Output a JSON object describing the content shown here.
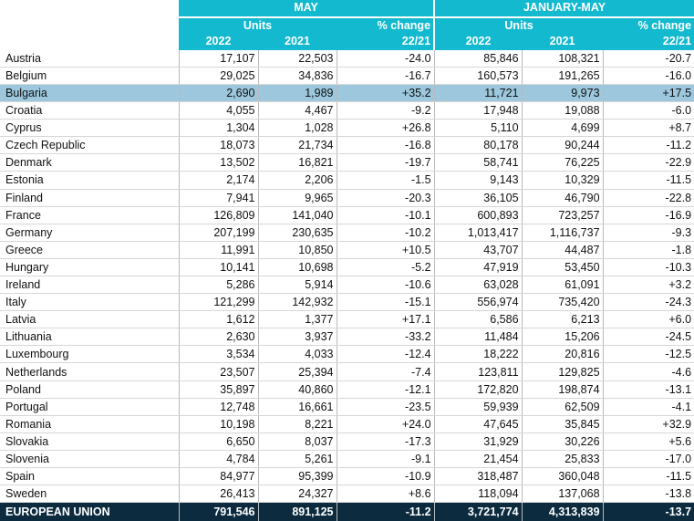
{
  "header": {
    "may_label": "MAY",
    "jan_may_label": "JANUARY-MAY",
    "units_label": "Units",
    "pct_change_label": "% change",
    "year_2022": "2022",
    "year_2021": "2021",
    "period_label": "22/21"
  },
  "rows": [
    {
      "country": "Austria",
      "may_2022": "17,107",
      "may_2021": "22,503",
      "may_pct": "-24.0",
      "ytd_2022": "85,846",
      "ytd_2021": "108,321",
      "ytd_pct": "-20.7"
    },
    {
      "country": "Belgium",
      "may_2022": "29,025",
      "may_2021": "34,836",
      "may_pct": "-16.7",
      "ytd_2022": "160,573",
      "ytd_2021": "191,265",
      "ytd_pct": "-16.0"
    },
    {
      "country": "Bulgaria",
      "may_2022": "2,690",
      "may_2021": "1,989",
      "may_pct": "+35.2",
      "ytd_2022": "11,721",
      "ytd_2021": "9,973",
      "ytd_pct": "+17.5"
    },
    {
      "country": "Croatia",
      "may_2022": "4,055",
      "may_2021": "4,467",
      "may_pct": "-9.2",
      "ytd_2022": "17,948",
      "ytd_2021": "19,088",
      "ytd_pct": "-6.0"
    },
    {
      "country": "Cyprus",
      "may_2022": "1,304",
      "may_2021": "1,028",
      "may_pct": "+26.8",
      "ytd_2022": "5,110",
      "ytd_2021": "4,699",
      "ytd_pct": "+8.7"
    },
    {
      "country": "Czech Republic",
      "may_2022": "18,073",
      "may_2021": "21,734",
      "may_pct": "-16.8",
      "ytd_2022": "80,178",
      "ytd_2021": "90,244",
      "ytd_pct": "-11.2"
    },
    {
      "country": "Denmark",
      "may_2022": "13,502",
      "may_2021": "16,821",
      "may_pct": "-19.7",
      "ytd_2022": "58,741",
      "ytd_2021": "76,225",
      "ytd_pct": "-22.9"
    },
    {
      "country": "Estonia",
      "may_2022": "2,174",
      "may_2021": "2,206",
      "may_pct": "-1.5",
      "ytd_2022": "9,143",
      "ytd_2021": "10,329",
      "ytd_pct": "-11.5"
    },
    {
      "country": "Finland",
      "may_2022": "7,941",
      "may_2021": "9,965",
      "may_pct": "-20.3",
      "ytd_2022": "36,105",
      "ytd_2021": "46,790",
      "ytd_pct": "-22.8"
    },
    {
      "country": "France",
      "may_2022": "126,809",
      "may_2021": "141,040",
      "may_pct": "-10.1",
      "ytd_2022": "600,893",
      "ytd_2021": "723,257",
      "ytd_pct": "-16.9"
    },
    {
      "country": "Germany",
      "may_2022": "207,199",
      "may_2021": "230,635",
      "may_pct": "-10.2",
      "ytd_2022": "1,013,417",
      "ytd_2021": "1,116,737",
      "ytd_pct": "-9.3"
    },
    {
      "country": "Greece",
      "may_2022": "11,991",
      "may_2021": "10,850",
      "may_pct": "+10.5",
      "ytd_2022": "43,707",
      "ytd_2021": "44,487",
      "ytd_pct": "-1.8"
    },
    {
      "country": "Hungary",
      "may_2022": "10,141",
      "may_2021": "10,698",
      "may_pct": "-5.2",
      "ytd_2022": "47,919",
      "ytd_2021": "53,450",
      "ytd_pct": "-10.3"
    },
    {
      "country": "Ireland",
      "may_2022": "5,286",
      "may_2021": "5,914",
      "may_pct": "-10.6",
      "ytd_2022": "63,028",
      "ytd_2021": "61,091",
      "ytd_pct": "+3.2"
    },
    {
      "country": "Italy",
      "may_2022": "121,299",
      "may_2021": "142,932",
      "may_pct": "-15.1",
      "ytd_2022": "556,974",
      "ytd_2021": "735,420",
      "ytd_pct": "-24.3"
    },
    {
      "country": "Latvia",
      "may_2022": "1,612",
      "may_2021": "1,377",
      "may_pct": "+17.1",
      "ytd_2022": "6,586",
      "ytd_2021": "6,213",
      "ytd_pct": "+6.0"
    },
    {
      "country": "Lithuania",
      "may_2022": "2,630",
      "may_2021": "3,937",
      "may_pct": "-33.2",
      "ytd_2022": "11,484",
      "ytd_2021": "15,206",
      "ytd_pct": "-24.5"
    },
    {
      "country": "Luxembourg",
      "may_2022": "3,534",
      "may_2021": "4,033",
      "may_pct": "-12.4",
      "ytd_2022": "18,222",
      "ytd_2021": "20,816",
      "ytd_pct": "-12.5"
    },
    {
      "country": "Netherlands",
      "may_2022": "23,507",
      "may_2021": "25,394",
      "may_pct": "-7.4",
      "ytd_2022": "123,811",
      "ytd_2021": "129,825",
      "ytd_pct": "-4.6"
    },
    {
      "country": "Poland",
      "may_2022": "35,897",
      "may_2021": "40,860",
      "may_pct": "-12.1",
      "ytd_2022": "172,820",
      "ytd_2021": "198,874",
      "ytd_pct": "-13.1"
    },
    {
      "country": "Portugal",
      "may_2022": "12,748",
      "may_2021": "16,661",
      "may_pct": "-23.5",
      "ytd_2022": "59,939",
      "ytd_2021": "62,509",
      "ytd_pct": "-4.1"
    },
    {
      "country": "Romania",
      "may_2022": "10,198",
      "may_2021": "8,221",
      "may_pct": "+24.0",
      "ytd_2022": "47,645",
      "ytd_2021": "35,845",
      "ytd_pct": "+32.9"
    },
    {
      "country": "Slovakia",
      "may_2022": "6,650",
      "may_2021": "8,037",
      "may_pct": "-17.3",
      "ytd_2022": "31,929",
      "ytd_2021": "30,226",
      "ytd_pct": "+5.6"
    },
    {
      "country": "Slovenia",
      "may_2022": "4,784",
      "may_2021": "5,261",
      "may_pct": "-9.1",
      "ytd_2022": "21,454",
      "ytd_2021": "25,833",
      "ytd_pct": "-17.0"
    },
    {
      "country": "Spain",
      "may_2022": "84,977",
      "may_2021": "95,399",
      "may_pct": "-10.9",
      "ytd_2022": "318,487",
      "ytd_2021": "360,048",
      "ytd_pct": "-11.5"
    },
    {
      "country": "Sweden",
      "may_2022": "26,413",
      "may_2021": "24,327",
      "may_pct": "+8.6",
      "ytd_2022": "118,094",
      "ytd_2021": "137,068",
      "ytd_pct": "-13.8"
    }
  ],
  "total": {
    "country": "EUROPEAN UNION",
    "may_2022": "791,546",
    "may_2021": "891,125",
    "may_pct": "-11.2",
    "ytd_2022": "3,721,774",
    "ytd_2021": "4,313,839",
    "ytd_pct": "-13.7"
  },
  "highlight_row": "Bulgaria",
  "colors": {
    "header": "#13b9cf",
    "highlight": "#9cc7dc",
    "total": "#0d2b3e"
  }
}
